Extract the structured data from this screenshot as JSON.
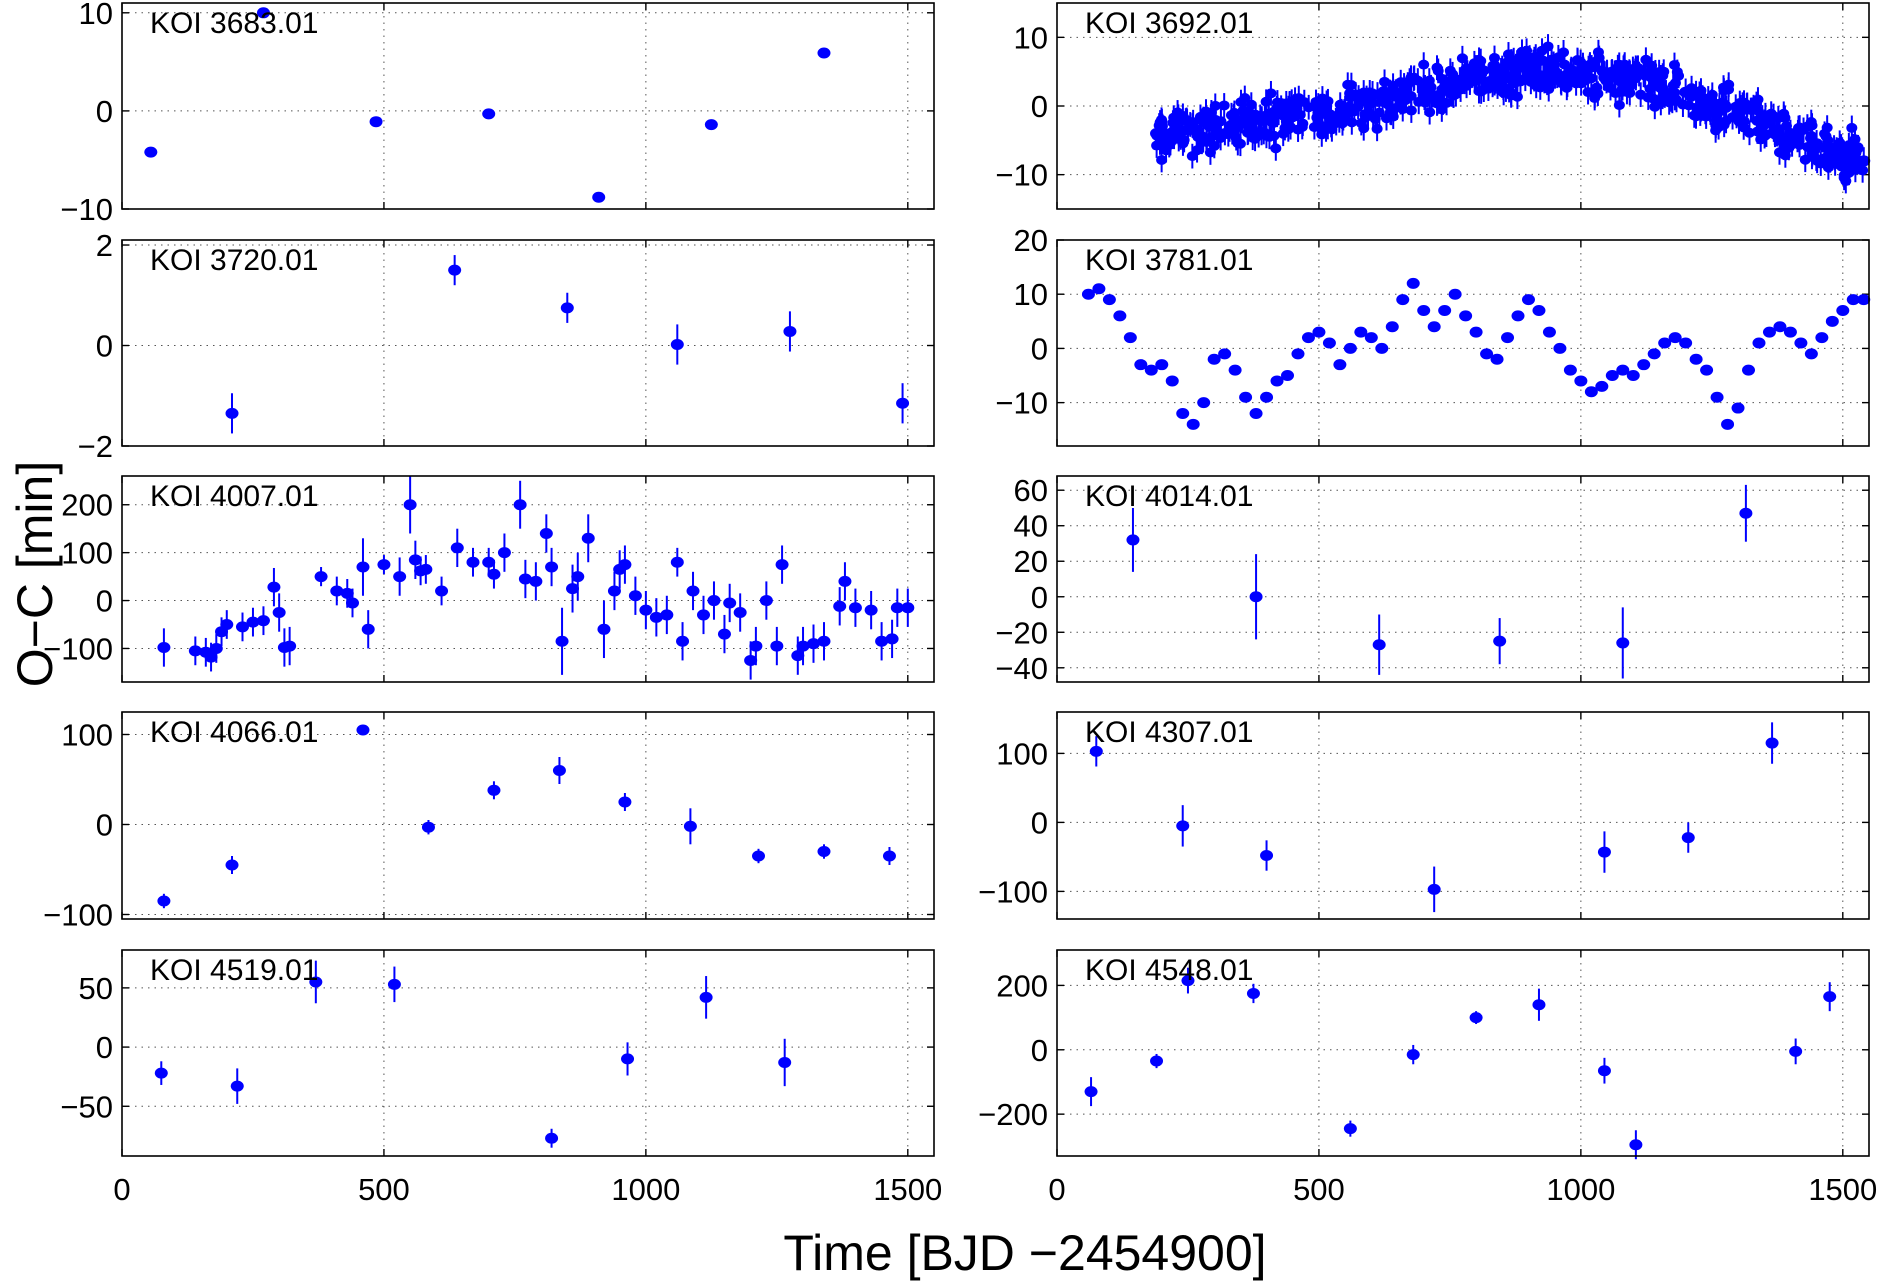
{
  "figure": {
    "xlabel": "Time [BJD −2454900]",
    "ylabel": "O−C [min]"
  },
  "colors": {
    "points": "#0000ff",
    "axes": "#000000"
  },
  "chart_data": [
    {
      "type": "scatter",
      "title": "KOI 3683.01",
      "xlim": [
        0,
        1550
      ],
      "ylim": [
        -10,
        11
      ],
      "yticks": [
        -10,
        0,
        10
      ],
      "xticks": [
        0,
        500,
        1000,
        1500
      ],
      "grid": true,
      "x": [
        55,
        270,
        485,
        700,
        910,
        1125,
        1340
      ],
      "y": [
        -4.2,
        10.0,
        -1.1,
        -0.3,
        -8.8,
        -1.4,
        5.9
      ],
      "yerr": [
        0.3,
        0.3,
        0.3,
        0.3,
        0.3,
        0.3,
        0.3
      ]
    },
    {
      "type": "scatter",
      "title": "KOI 3692.01",
      "xlim": [
        0,
        1550
      ],
      "ylim": [
        -15,
        15
      ],
      "yticks": [
        -10,
        0,
        10
      ],
      "xticks": [
        0,
        500,
        1000,
        1500
      ],
      "grid": true,
      "x": [
        190,
        250,
        300,
        350,
        400,
        450,
        500,
        550,
        600,
        650,
        700,
        750,
        800,
        850,
        900,
        950,
        1000,
        1050,
        1100,
        1150,
        1200,
        1250,
        1300,
        1350,
        1400,
        1450,
        1500,
        1540
      ],
      "y": [
        -4,
        -3.5,
        -3,
        -2.5,
        -2,
        -1.5,
        -1,
        -0.5,
        0.5,
        1.5,
        2.5,
        3.5,
        4,
        4.5,
        5,
        5,
        5,
        4.5,
        4,
        3,
        2,
        0.5,
        -1,
        -2.5,
        -4,
        -5.5,
        -7,
        -8
      ],
      "yerr": [
        2,
        2,
        2,
        2,
        2,
        2,
        2,
        2,
        2,
        2,
        2,
        2,
        2,
        2,
        2,
        2,
        2,
        2,
        2,
        2,
        2,
        2,
        2,
        2,
        2,
        2,
        2,
        2
      ],
      "scatter_note": ""
    },
    {
      "type": "scatter",
      "title": "KOI 3720.01",
      "xlim": [
        0,
        1550
      ],
      "ylim": [
        -2,
        2.1
      ],
      "yticks": [
        -2,
        0,
        2
      ],
      "xticks": [
        0,
        500,
        1000,
        1500
      ],
      "grid": true,
      "x": [
        210,
        635,
        850,
        1060,
        1275,
        1490
      ],
      "y": [
        -1.35,
        1.5,
        0.75,
        0.02,
        0.28,
        -1.15
      ],
      "yerr": [
        0.4,
        0.3,
        0.3,
        0.4,
        0.4,
        0.4
      ]
    },
    {
      "type": "scatter",
      "title": "KOI 3781.01",
      "xlim": [
        0,
        1550
      ],
      "ylim": [
        -18,
        20
      ],
      "yticks": [
        -10,
        0,
        10,
        20
      ],
      "xticks": [
        0,
        500,
        1000,
        1500
      ],
      "grid": true,
      "x": [
        60,
        80,
        100,
        120,
        140,
        160,
        180,
        200,
        220,
        240,
        260,
        280,
        300,
        320,
        340,
        360,
        380,
        400,
        420,
        440,
        460,
        480,
        500,
        520,
        540,
        560,
        580,
        600,
        620,
        640,
        660,
        680,
        700,
        720,
        740,
        760,
        780,
        800,
        820,
        840,
        860,
        880,
        900,
        920,
        940,
        960,
        980,
        1000,
        1020,
        1040,
        1060,
        1080,
        1100,
        1120,
        1140,
        1160,
        1180,
        1200,
        1220,
        1240,
        1260,
        1280,
        1300,
        1320,
        1340,
        1360,
        1380,
        1400,
        1420,
        1440,
        1460,
        1480,
        1500,
        1520,
        1540
      ],
      "y": [
        10,
        11,
        9,
        6,
        2,
        -3,
        -4,
        -3,
        -6,
        -12,
        -14,
        -10,
        -2,
        -1,
        -4,
        -9,
        -12,
        -9,
        -6,
        -5,
        -1,
        2,
        3,
        1,
        -3,
        0,
        3,
        2,
        0,
        4,
        9,
        12,
        7,
        4,
        7,
        10,
        6,
        3,
        -1,
        -2,
        2,
        6,
        9,
        7,
        3,
        0,
        -4,
        -6,
        -8,
        -7,
        -5,
        -4,
        -5,
        -3,
        -1,
        1,
        2,
        1,
        -2,
        -4,
        -9,
        -14,
        -11,
        -4,
        1,
        3,
        4,
        3,
        1,
        -1,
        2,
        5,
        7,
        9,
        9
      ],
      "yerr": []
    },
    {
      "type": "scatter",
      "title": "KOI 4007.01",
      "xlim": [
        0,
        1550
      ],
      "ylim": [
        -170,
        260
      ],
      "yticks": [
        -100,
        0,
        100,
        200
      ],
      "xticks": [
        0,
        500,
        1000,
        1500
      ],
      "grid": true,
      "x": [
        80,
        140,
        160,
        170,
        180,
        190,
        200,
        230,
        250,
        270,
        290,
        300,
        310,
        320,
        380,
        410,
        430,
        440,
        460,
        470,
        500,
        530,
        550,
        560,
        570,
        580,
        610,
        640,
        670,
        700,
        710,
        730,
        760,
        770,
        790,
        810,
        820,
        840,
        860,
        870,
        890,
        920,
        940,
        950,
        960,
        980,
        1000,
        1020,
        1040,
        1060,
        1070,
        1090,
        1110,
        1130,
        1150,
        1160,
        1180,
        1200,
        1210,
        1230,
        1250,
        1260,
        1290,
        1300,
        1320,
        1340,
        1370,
        1380,
        1400,
        1430,
        1450,
        1470,
        1480,
        1500
      ],
      "y": [
        -98,
        -105,
        -108,
        -118,
        -100,
        -65,
        -50,
        -55,
        -45,
        -42,
        28,
        -25,
        -98,
        -95,
        50,
        20,
        15,
        -5,
        70,
        -60,
        75,
        50,
        200,
        85,
        62,
        65,
        20,
        110,
        80,
        80,
        55,
        100,
        200,
        45,
        40,
        140,
        70,
        -85,
        25,
        50,
        130,
        -60,
        20,
        65,
        75,
        10,
        -20,
        -35,
        -30,
        80,
        -85,
        20,
        -30,
        0,
        -70,
        -5,
        -25,
        -125,
        -95,
        0,
        -95,
        75,
        -115,
        -95,
        -90,
        -85,
        -12,
        40,
        -15,
        -20,
        -85,
        -80,
        -15,
        -15
      ],
      "yerr": [
        40,
        30,
        30,
        30,
        30,
        30,
        30,
        30,
        30,
        30,
        40,
        40,
        40,
        40,
        20,
        30,
        30,
        30,
        60,
        40,
        20,
        40,
        60,
        40,
        30,
        30,
        30,
        40,
        30,
        30,
        30,
        40,
        50,
        40,
        40,
        40,
        40,
        70,
        50,
        50,
        50,
        60,
        40,
        40,
        40,
        40,
        40,
        40,
        40,
        30,
        40,
        40,
        40,
        40,
        40,
        40,
        40,
        40,
        40,
        40,
        40,
        40,
        40,
        40,
        40,
        40,
        40,
        40,
        40,
        40,
        40,
        40,
        40,
        40
      ]
    },
    {
      "type": "scatter",
      "title": "KOI 4014.01",
      "xlim": [
        0,
        1550
      ],
      "ylim": [
        -48,
        68
      ],
      "yticks": [
        -40,
        -20,
        0,
        20,
        40,
        60
      ],
      "xticks": [
        0,
        500,
        1000,
        1500
      ],
      "grid": true,
      "x": [
        145,
        380,
        615,
        845,
        1080,
        1315
      ],
      "y": [
        32,
        0,
        -27,
        -25,
        -26,
        47
      ],
      "yerr": [
        18,
        24,
        17,
        13,
        20,
        16
      ]
    },
    {
      "type": "scatter",
      "title": "KOI 4066.01",
      "xlim": [
        0,
        1550
      ],
      "ylim": [
        -105,
        125
      ],
      "yticks": [
        -100,
        0,
        100
      ],
      "xticks": [
        0,
        500,
        1000,
        1500
      ],
      "grid": true,
      "x": [
        80,
        210,
        460,
        585,
        710,
        835,
        960,
        1085,
        1215,
        1340,
        1465
      ],
      "y": [
        -85,
        -45,
        105,
        -3,
        38,
        60,
        25,
        -2,
        -35,
        -30,
        -35
      ],
      "yerr": [
        8,
        10,
        5,
        8,
        10,
        15,
        10,
        20,
        8,
        8,
        10
      ]
    },
    {
      "type": "scatter",
      "title": "KOI 4307.01",
      "xlim": [
        0,
        1550
      ],
      "ylim": [
        -140,
        160
      ],
      "yticks": [
        -100,
        0,
        100
      ],
      "xticks": [
        0,
        500,
        1000,
        1500
      ],
      "grid": true,
      "x": [
        75,
        240,
        400,
        720,
        1045,
        1205,
        1365
      ],
      "y": [
        103,
        -5,
        -48,
        -97,
        -43,
        -22,
        115
      ],
      "yerr": [
        22,
        30,
        22,
        33,
        30,
        22,
        30
      ]
    },
    {
      "type": "scatter",
      "title": "KOI 4519.01",
      "xlim": [
        0,
        1550
      ],
      "ylim": [
        -92,
        82
      ],
      "yticks": [
        -50,
        0,
        50
      ],
      "xticks": [
        0,
        500,
        1000,
        1500
      ],
      "grid": true,
      "x": [
        75,
        220,
        370,
        520,
        820,
        965,
        1115,
        1265
      ],
      "y": [
        -22,
        -33,
        55,
        53,
        -77,
        -10,
        42,
        -13
      ],
      "yerr": [
        10,
        15,
        18,
        15,
        8,
        14,
        18,
        20
      ]
    },
    {
      "type": "scatter",
      "title": "KOI 4548.01",
      "xlim": [
        0,
        1550
      ],
      "ylim": [
        -330,
        310
      ],
      "yticks": [
        -200,
        0,
        200
      ],
      "xticks": [
        0,
        500,
        1000,
        1500
      ],
      "grid": true,
      "x": [
        65,
        190,
        250,
        375,
        560,
        680,
        800,
        920,
        1045,
        1105,
        1410,
        1475
      ],
      "y": [
        -130,
        -35,
        215,
        175,
        -245,
        -15,
        100,
        140,
        -65,
        -295,
        -5,
        165
      ],
      "yerr": [
        45,
        22,
        40,
        30,
        25,
        30,
        20,
        50,
        40,
        45,
        40,
        45
      ]
    }
  ]
}
